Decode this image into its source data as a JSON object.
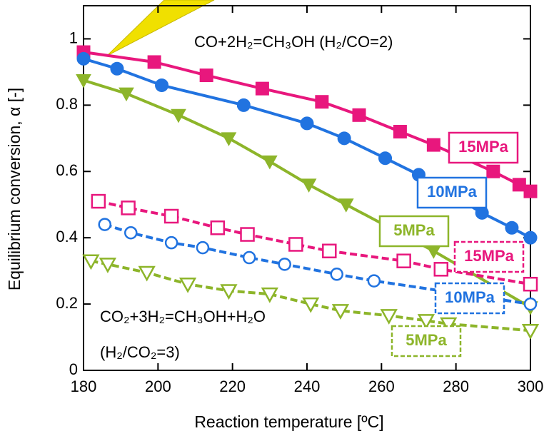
{
  "chart_data": {
    "type": "line",
    "xlabel": "Reaction temperature [ºC]",
    "ylabel": "Equilibrium conversion, α [-]",
    "xlim": [
      180,
      300
    ],
    "ylim": [
      0,
      1.1
    ],
    "xticks": [
      180,
      200,
      220,
      240,
      260,
      280,
      300
    ],
    "yticks": [
      0,
      0.2,
      0.4,
      0.6,
      0.8,
      1
    ],
    "annotations": [
      "CO+2H₂=CH₃OH  (H₂/CO=2)",
      "CO₂+3H₂=CH₃OH+H₂O",
      "(H₂/CO₂=3)"
    ],
    "series": [
      {
        "name": "15MPa",
        "color": "#e8177d",
        "marker": "square",
        "marker_fill": true,
        "linestyle": "solid",
        "x": [
          180,
          199,
          213,
          228,
          244,
          254,
          265,
          274,
          290,
          297,
          300
        ],
        "values": [
          0.96,
          0.93,
          0.89,
          0.85,
          0.81,
          0.77,
          0.72,
          0.68,
          0.6,
          0.56,
          0.54
        ]
      },
      {
        "name": "10MPa",
        "color": "#2173e0",
        "marker": "circle",
        "marker_fill": true,
        "linestyle": "solid",
        "x": [
          180,
          189,
          201,
          223,
          240,
          250,
          261,
          270,
          287,
          295,
          300
        ],
        "values": [
          0.94,
          0.91,
          0.86,
          0.8,
          0.745,
          0.7,
          0.64,
          0.59,
          0.475,
          0.43,
          0.4
        ]
      },
      {
        "name": "5MPa",
        "color": "#8db52a",
        "marker": "triangle",
        "marker_fill": true,
        "linestyle": "solid",
        "x": [
          180,
          191.5,
          205.5,
          219,
          230,
          240.5,
          250.5,
          274,
          300
        ],
        "values": [
          0.875,
          0.835,
          0.77,
          0.7,
          0.63,
          0.56,
          0.5,
          0.36,
          0.19
        ]
      },
      {
        "name": "15MPa",
        "color": "#e8177d",
        "marker": "square",
        "marker_fill": false,
        "linestyle": "dashed",
        "x": [
          184,
          192,
          203.6,
          216,
          224,
          237,
          246,
          266,
          276,
          300
        ],
        "values": [
          0.51,
          0.49,
          0.465,
          0.43,
          0.41,
          0.38,
          0.36,
          0.33,
          0.305,
          0.26
        ]
      },
      {
        "name": "10MPa",
        "color": "#2173e0",
        "marker": "circle",
        "marker_fill": false,
        "linestyle": "dashed",
        "x": [
          185.7,
          192.7,
          203.6,
          212,
          224.5,
          234,
          248,
          258,
          300
        ],
        "values": [
          0.44,
          0.415,
          0.385,
          0.37,
          0.34,
          0.32,
          0.29,
          0.27,
          0.2
        ]
      },
      {
        "name": "5MPa",
        "color": "#8db52a",
        "marker": "triangle",
        "marker_fill": false,
        "linestyle": "dashed",
        "x": [
          182,
          186.5,
          197,
          208,
          219,
          230,
          241,
          249,
          262,
          272,
          278,
          300
        ],
        "values": [
          0.33,
          0.32,
          0.295,
          0.26,
          0.24,
          0.23,
          0.2,
          0.18,
          0.165,
          0.15,
          0.14,
          0.12
        ]
      }
    ]
  }
}
